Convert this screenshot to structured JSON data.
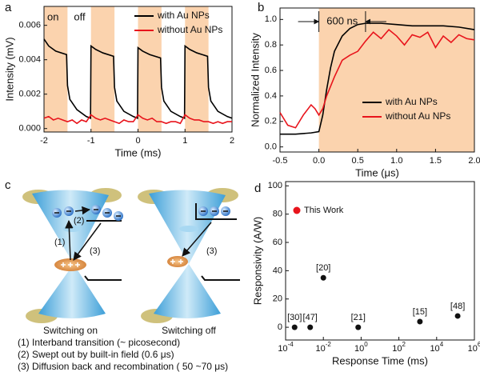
{
  "chart_data": [
    {
      "panel": "a",
      "type": "line",
      "xlabel": "Time (ms)",
      "ylabel": "Intensity (mV)",
      "xlim": [
        -2,
        2
      ],
      "ylim": [
        -0.0002,
        0.0071
      ],
      "xticks": [
        -2,
        -1,
        0,
        1,
        2
      ],
      "yticks": [
        {
          "value": 0,
          "label": "0.000"
        },
        {
          "value": 0.002,
          "label": "0.002"
        },
        {
          "value": 0.004,
          "label": "0.004"
        },
        {
          "value": 0.006,
          "label": "0.006"
        }
      ],
      "shaded": [
        [
          -2,
          -1.5
        ],
        [
          -1,
          -0.5
        ],
        [
          0,
          0.5
        ],
        [
          1,
          1.5
        ]
      ],
      "shade_color": "#fbd3ae",
      "on_label": "on",
      "off_label": "off",
      "legend": "upper right",
      "series": [
        {
          "name": "with Au NPs",
          "color": "#000000",
          "x": [
            -2.0,
            -1.9,
            -1.75,
            -1.52,
            -1.5,
            -1.45,
            -1.3,
            -1.1,
            -1.01,
            -1.0,
            -0.9,
            -0.75,
            -0.52,
            -0.5,
            -0.45,
            -0.3,
            -0.1,
            -0.01,
            0.0,
            0.1,
            0.25,
            0.48,
            0.5,
            0.55,
            0.7,
            0.9,
            0.99,
            1.0,
            1.1,
            1.25,
            1.48,
            1.5,
            1.55,
            1.7,
            1.9,
            2.0
          ],
          "values": [
            0.0052,
            0.0048,
            0.0045,
            0.0043,
            0.0025,
            0.0017,
            0.0011,
            0.0007,
            0.0006,
            0.0048,
            0.0046,
            0.0044,
            0.0042,
            0.0024,
            0.0016,
            0.001,
            0.0007,
            0.0006,
            0.0047,
            0.0045,
            0.0043,
            0.0041,
            0.0024,
            0.0016,
            0.001,
            0.0007,
            0.0006,
            0.0048,
            0.0046,
            0.0044,
            0.0042,
            0.0024,
            0.0016,
            0.001,
            0.0007,
            0.0006
          ]
        },
        {
          "name": "without Au NPs",
          "color": "#e8141c",
          "x": [
            -2.0,
            -1.9,
            -1.8,
            -1.7,
            -1.6,
            -1.5,
            -1.4,
            -1.3,
            -1.2,
            -1.1,
            -1.0,
            -0.9,
            -0.8,
            -0.7,
            -0.6,
            -0.5,
            -0.4,
            -0.3,
            -0.2,
            -0.1,
            0.0,
            0.1,
            0.2,
            0.3,
            0.4,
            0.5,
            0.6,
            0.7,
            0.8,
            0.9,
            1.0,
            1.1,
            1.2,
            1.3,
            1.4,
            1.5,
            1.6,
            1.7,
            1.8,
            1.9,
            2.0
          ],
          "values": [
            0.0006,
            0.0007,
            0.0005,
            0.0006,
            0.0005,
            0.0004,
            0.0005,
            0.0003,
            0.0005,
            0.0004,
            0.0008,
            0.0006,
            0.0005,
            0.0006,
            0.0005,
            0.0004,
            0.0003,
            0.0005,
            0.0004,
            0.0004,
            0.0008,
            0.0006,
            0.0005,
            0.0006,
            0.0004,
            0.0004,
            0.0003,
            0.0004,
            0.0004,
            0.0003,
            0.0008,
            0.0006,
            0.0005,
            0.0005,
            0.0004,
            0.0004,
            0.0003,
            0.0004,
            0.0003,
            0.0004,
            0.0004
          ]
        }
      ]
    },
    {
      "panel": "b",
      "type": "line",
      "xlabel": "Time (μs)",
      "ylabel": "Normalized Intensity",
      "xlim": [
        -0.5,
        2.0
      ],
      "ylim": [
        -0.04,
        1.09
      ],
      "xticks": [
        -0.5,
        {
          "value": 0,
          "label": "0.0"
        },
        0.5,
        {
          "value": 1,
          "label": "1.0"
        },
        1.5,
        {
          "value": 2,
          "label": "2.0"
        }
      ],
      "yticks": [
        {
          "value": 0,
          "label": "0.0"
        },
        0.2,
        0.4,
        0.6,
        0.8,
        {
          "value": 1,
          "label": "1.0"
        }
      ],
      "shaded": [
        [
          0,
          2.0
        ]
      ],
      "shade_color": "#fbd3ae",
      "annotation": {
        "text": "600 ns",
        "interval": [
          0,
          0.6
        ]
      },
      "legend": "lower right",
      "series": [
        {
          "name": "with Au NPs",
          "color": "#000000",
          "x": [
            -0.5,
            -0.3,
            -0.1,
            0.0,
            0.05,
            0.1,
            0.15,
            0.2,
            0.3,
            0.4,
            0.5,
            0.6,
            0.8,
            1.0,
            1.2,
            1.4,
            1.6,
            1.8,
            2.0
          ],
          "values": [
            0.1,
            0.1,
            0.11,
            0.12,
            0.25,
            0.45,
            0.62,
            0.75,
            0.87,
            0.93,
            0.96,
            0.97,
            0.97,
            0.96,
            0.95,
            0.95,
            0.95,
            0.94,
            0.92
          ]
        },
        {
          "name": "without Au NPs",
          "color": "#e8141c",
          "x": [
            -0.5,
            -0.4,
            -0.3,
            -0.2,
            -0.1,
            -0.05,
            0.0,
            0.05,
            0.1,
            0.2,
            0.3,
            0.4,
            0.5,
            0.6,
            0.7,
            0.8,
            0.9,
            1.0,
            1.1,
            1.2,
            1.3,
            1.4,
            1.5,
            1.6,
            1.7,
            1.8,
            1.9,
            2.0
          ],
          "values": [
            0.27,
            0.17,
            0.15,
            0.25,
            0.33,
            0.3,
            0.25,
            0.3,
            0.4,
            0.55,
            0.68,
            0.72,
            0.75,
            0.83,
            0.9,
            0.85,
            0.92,
            0.87,
            0.8,
            0.88,
            0.86,
            0.9,
            0.78,
            0.87,
            0.82,
            0.88,
            0.85,
            0.84
          ]
        }
      ]
    },
    {
      "panel": "d",
      "type": "scatter",
      "xlabel": "Response Time (ms)",
      "ylabel": "Responsivity (A/W)",
      "xscale": "log",
      "xlim": [
        0.0001,
        1000000
      ],
      "ylim": [
        -9,
        103
      ],
      "xticks": [
        {
          "value": 0.0001,
          "label": "10",
          "exp": "-4"
        },
        {
          "value": 0.01,
          "label": "10",
          "exp": "-2"
        },
        {
          "value": 1,
          "label": "10",
          "exp": "0"
        },
        {
          "value": 100,
          "label": "10",
          "exp": "2"
        },
        {
          "value": 10000,
          "label": "10",
          "exp": "4"
        },
        {
          "value": 1000000,
          "label": "10",
          "exp": "6"
        }
      ],
      "yticks": [
        0,
        20,
        40,
        60,
        80,
        100
      ],
      "legend": {
        "name": "This Work",
        "color": "#e8141c"
      },
      "points": {
        "color": "#111111",
        "labels": [
          "[30]",
          "[47]",
          "[20]",
          "[21]",
          "[15]",
          "[48]"
        ],
        "x": [
          0.0003,
          0.002,
          0.01,
          0.7,
          1300,
          130000
        ],
        "values": [
          0,
          0,
          35,
          0,
          4,
          8
        ]
      }
    }
  ],
  "diagram": {
    "panel": "c",
    "states": [
      "Switching on",
      "Switching off"
    ],
    "steps": [
      "(1)",
      "(2)",
      "(3)"
    ],
    "captions": [
      "(1) Interband transition (~ picosecond)",
      "(2) Swept out by built-in field (0.6 μs)",
      "(3) Diffusion back and recombination ( 50 ~70 μs)"
    ]
  }
}
